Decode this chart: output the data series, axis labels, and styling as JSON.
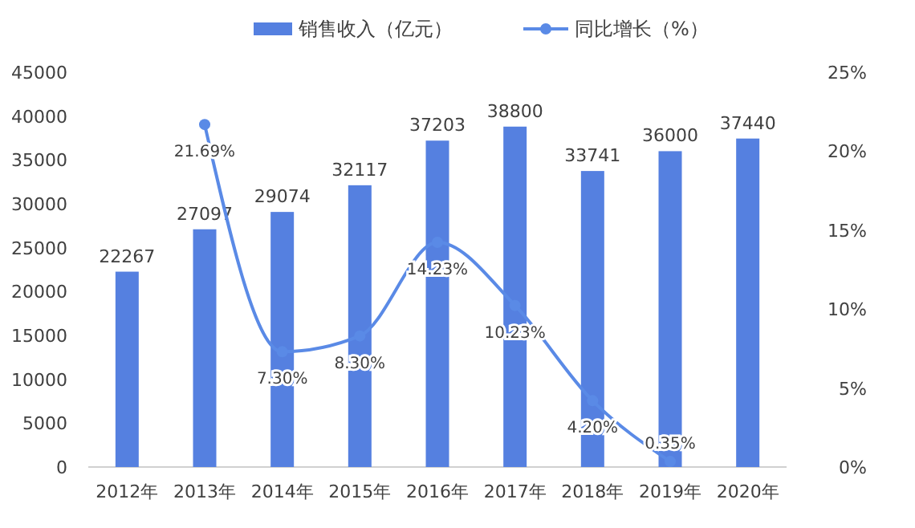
{
  "chart_data": {
    "type": "bar",
    "categories": [
      "2012年",
      "2013年",
      "2014年",
      "2015年",
      "2016年",
      "2017年",
      "2018年",
      "2019年",
      "2020年"
    ],
    "series": [
      {
        "name": "销售收入（亿元）",
        "color": "#5580e0",
        "values": [
          22267,
          27097,
          29074,
          32117,
          37203,
          38800,
          33741,
          36000,
          37440
        ]
      },
      {
        "name": "同比增长（%）",
        "type": "line",
        "axis": "y2",
        "color": "#5a8ae6",
        "values": [
          null,
          21.69,
          7.3,
          8.3,
          14.23,
          10.23,
          4.2,
          0.35,
          null
        ],
        "value_labels": [
          null,
          "21.69%",
          "7.30%",
          "8.30%",
          "14.23%",
          "10.23%",
          "4.20%",
          "0.35%",
          null
        ]
      }
    ],
    "ylim": [
      0,
      45000
    ],
    "yticks": [
      0,
      5000,
      10000,
      15000,
      20000,
      25000,
      30000,
      35000,
      40000,
      45000
    ],
    "y2lim": [
      0,
      25
    ],
    "y2ticks": [
      {
        "value": 0,
        "label": "0%"
      },
      {
        "value": 5,
        "label": "5%"
      },
      {
        "value": 10,
        "label": "10%"
      },
      {
        "value": 15,
        "label": "15%"
      },
      {
        "value": 20,
        "label": "20%"
      },
      {
        "value": 25,
        "label": "25%"
      }
    ],
    "data_labels": true,
    "legend": "top",
    "marker": "circle",
    "grid": false
  }
}
